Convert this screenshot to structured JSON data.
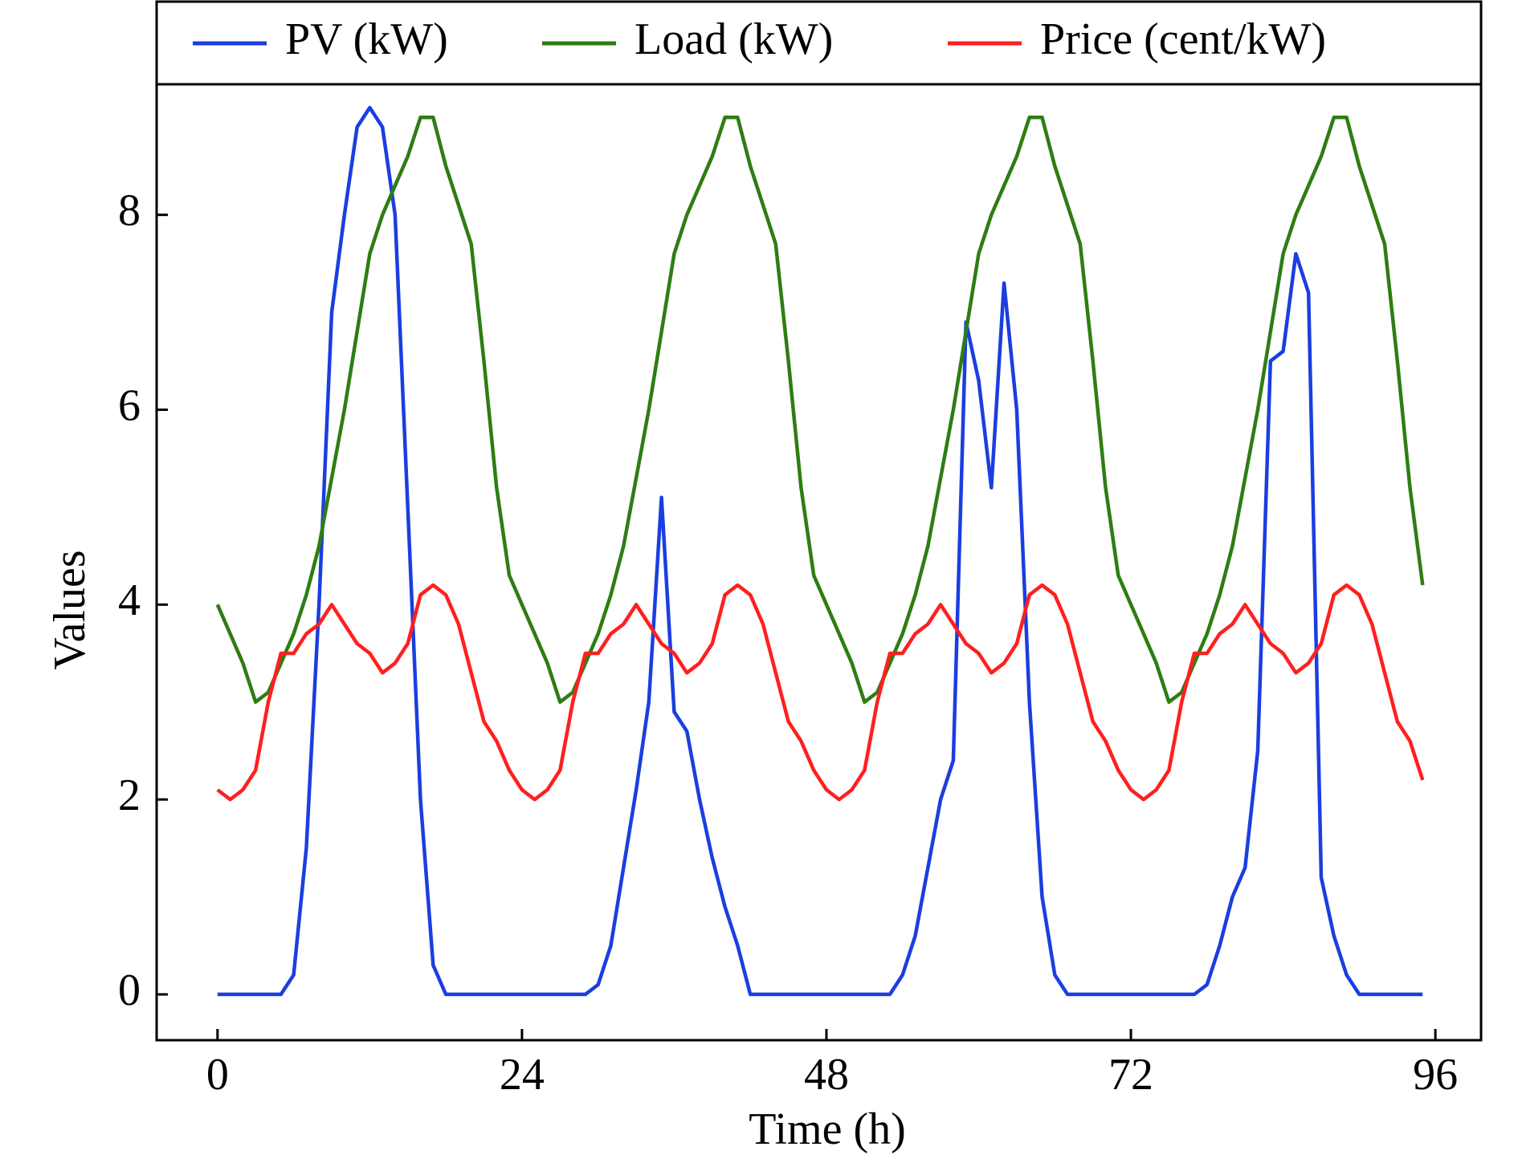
{
  "chart_data": {
    "type": "line",
    "xlabel": "Time (h)",
    "ylabel": "Values",
    "x": [
      0,
      1,
      2,
      3,
      4,
      5,
      6,
      7,
      8,
      9,
      10,
      11,
      12,
      13,
      14,
      15,
      16,
      17,
      18,
      19,
      20,
      21,
      22,
      23,
      24,
      25,
      26,
      27,
      28,
      29,
      30,
      31,
      32,
      33,
      34,
      35,
      36,
      37,
      38,
      39,
      40,
      41,
      42,
      43,
      44,
      45,
      46,
      47,
      48,
      49,
      50,
      51,
      52,
      53,
      54,
      55,
      56,
      57,
      58,
      59,
      60,
      61,
      62,
      63,
      64,
      65,
      66,
      67,
      68,
      69,
      70,
      71,
      72,
      73,
      74,
      75,
      76,
      77,
      78,
      79,
      80,
      81,
      82,
      83,
      84,
      85,
      86,
      87,
      88,
      89,
      90,
      91,
      92,
      93,
      94,
      95
    ],
    "series": [
      {
        "name": "PV (kW)",
        "color": "#1a3ee0",
        "values": [
          0,
          0,
          0,
          0,
          0,
          0,
          0.2,
          1.5,
          4.0,
          7.0,
          8.0,
          8.9,
          9.1,
          8.9,
          8.0,
          5.0,
          2.0,
          0.3,
          0,
          0,
          0,
          0,
          0,
          0,
          0,
          0,
          0,
          0,
          0,
          0,
          0.1,
          0.5,
          1.3,
          2.1,
          3.0,
          5.1,
          2.9,
          2.7,
          2.0,
          1.4,
          0.9,
          0.5,
          0,
          0,
          0,
          0,
          0,
          0,
          0,
          0,
          0,
          0,
          0,
          0,
          0.2,
          0.6,
          1.3,
          2.0,
          2.4,
          6.9,
          6.3,
          5.2,
          7.3,
          6.0,
          3.0,
          1.0,
          0.2,
          0,
          0,
          0,
          0,
          0,
          0,
          0,
          0,
          0,
          0,
          0,
          0.1,
          0.5,
          1.0,
          1.3,
          2.5,
          6.5,
          6.6,
          7.6,
          7.2,
          1.2,
          0.6,
          0.2,
          0,
          0,
          0,
          0,
          0,
          0
        ]
      },
      {
        "name": "Load (kW)",
        "color": "#2e7d12",
        "values": [
          4.0,
          3.7,
          3.4,
          3.0,
          3.1,
          3.4,
          3.7,
          4.1,
          4.6,
          5.3,
          6.0,
          6.8,
          7.6,
          8.0,
          8.3,
          8.6,
          9.0,
          9.0,
          8.5,
          8.1,
          7.7,
          6.5,
          5.2,
          4.3,
          4.0,
          3.7,
          3.4,
          3.0,
          3.1,
          3.4,
          3.7,
          4.1,
          4.6,
          5.3,
          6.0,
          6.8,
          7.6,
          8.0,
          8.3,
          8.6,
          9.0,
          9.0,
          8.5,
          8.1,
          7.7,
          6.5,
          5.2,
          4.3,
          4.0,
          3.7,
          3.4,
          3.0,
          3.1,
          3.4,
          3.7,
          4.1,
          4.6,
          5.3,
          6.0,
          6.8,
          7.6,
          8.0,
          8.3,
          8.6,
          9.0,
          9.0,
          8.5,
          8.1,
          7.7,
          6.5,
          5.2,
          4.3,
          4.0,
          3.7,
          3.4,
          3.0,
          3.1,
          3.4,
          3.7,
          4.1,
          4.6,
          5.3,
          6.0,
          6.8,
          7.6,
          8.0,
          8.3,
          8.6,
          9.0,
          9.0,
          8.5,
          8.1,
          7.7,
          6.5,
          5.2,
          4.2
        ]
      },
      {
        "name": "Price (cent/kW)",
        "color": "#ff1f1f",
        "values": [
          2.1,
          2.0,
          2.1,
          2.3,
          3.0,
          3.5,
          3.5,
          3.7,
          3.8,
          4.0,
          3.8,
          3.6,
          3.5,
          3.3,
          3.4,
          3.6,
          4.1,
          4.2,
          4.1,
          3.8,
          3.3,
          2.8,
          2.6,
          2.3,
          2.1,
          2.0,
          2.1,
          2.3,
          3.0,
          3.5,
          3.5,
          3.7,
          3.8,
          4.0,
          3.8,
          3.6,
          3.5,
          3.3,
          3.4,
          3.6,
          4.1,
          4.2,
          4.1,
          3.8,
          3.3,
          2.8,
          2.6,
          2.3,
          2.1,
          2.0,
          2.1,
          2.3,
          3.0,
          3.5,
          3.5,
          3.7,
          3.8,
          4.0,
          3.8,
          3.6,
          3.5,
          3.3,
          3.4,
          3.6,
          4.1,
          4.2,
          4.1,
          3.8,
          3.3,
          2.8,
          2.6,
          2.3,
          2.1,
          2.0,
          2.1,
          2.3,
          3.0,
          3.5,
          3.5,
          3.7,
          3.8,
          4.0,
          3.8,
          3.6,
          3.5,
          3.3,
          3.4,
          3.6,
          4.1,
          4.2,
          4.1,
          3.8,
          3.3,
          2.8,
          2.6,
          2.2
        ]
      }
    ],
    "xlim": [
      -4.8,
      99.6
    ],
    "ylim": [
      -0.47,
      9.34
    ],
    "xticks": [
      0,
      24,
      48,
      72,
      96
    ],
    "yticks": [
      0,
      2,
      4,
      6,
      8
    ],
    "grid": false,
    "legend": "top"
  }
}
